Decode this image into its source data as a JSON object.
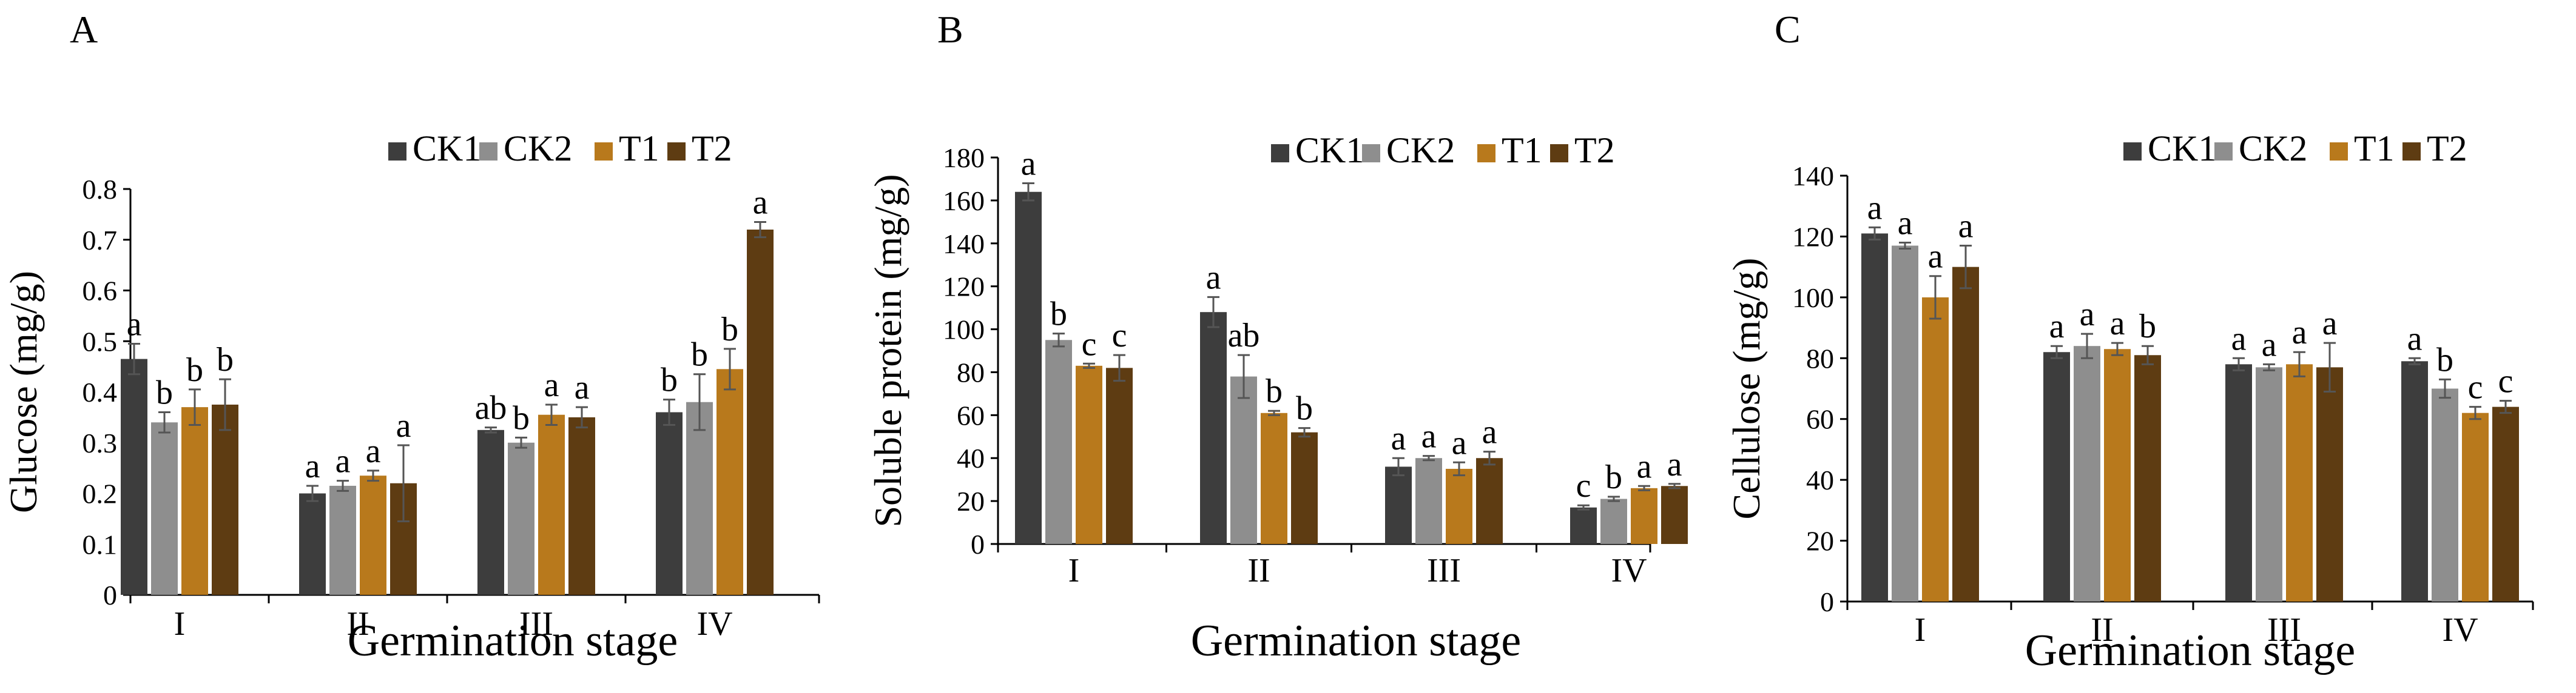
{
  "figure": {
    "legend": [
      "CK1",
      "CK2",
      "T1",
      "T2"
    ],
    "series_colors": [
      "#3d3d3d",
      "#8e8e8e",
      "#b8791c",
      "#5e3c12"
    ]
  },
  "chart_data": [
    {
      "panel": "A",
      "type": "bar",
      "ylabel": "Glucose (mg/g)",
      "xlabel": "Germination stage",
      "categories": [
        "I",
        "II",
        "III",
        "IV"
      ],
      "ylim": [
        0,
        0.8
      ],
      "yticks": [
        "0",
        "0.1",
        "0.2",
        "0.3",
        "0.4",
        "0.5",
        "0.6",
        "0.7",
        "0.8"
      ],
      "series": [
        {
          "name": "CK1",
          "values": [
            0.465,
            0.2,
            0.325,
            0.36
          ],
          "errors": [
            0.03,
            0.015,
            0.005,
            0.025
          ],
          "labels": [
            "a",
            "a",
            "ab",
            "b"
          ]
        },
        {
          "name": "CK2",
          "values": [
            0.34,
            0.215,
            0.3,
            0.38
          ],
          "errors": [
            0.02,
            0.01,
            0.01,
            0.055
          ],
          "labels": [
            "b",
            "a",
            "b",
            "b"
          ]
        },
        {
          "name": "T1",
          "values": [
            0.37,
            0.235,
            0.355,
            0.445
          ],
          "errors": [
            0.035,
            0.01,
            0.02,
            0.04
          ],
          "labels": [
            "b",
            "a",
            "a",
            "b"
          ]
        },
        {
          "name": "T2",
          "values": [
            0.375,
            0.22,
            0.35,
            0.72
          ],
          "errors": [
            0.05,
            0.075,
            0.02,
            0.015
          ],
          "labels": [
            "b",
            "a",
            "a",
            "a"
          ]
        }
      ]
    },
    {
      "panel": "B",
      "type": "bar",
      "ylabel": "Soluble protein (mg/g)",
      "xlabel": "Germination stage",
      "categories": [
        "I",
        "II",
        "III",
        "IV"
      ],
      "ylim": [
        0,
        180
      ],
      "yticks": [
        "0",
        "20",
        "40",
        "60",
        "80",
        "100",
        "120",
        "140",
        "160",
        "180"
      ],
      "series": [
        {
          "name": "CK1",
          "values": [
            164,
            108,
            36,
            17
          ],
          "errors": [
            4,
            7,
            4,
            1
          ],
          "labels": [
            "a",
            "a",
            "a",
            "c"
          ]
        },
        {
          "name": "CK2",
          "values": [
            95,
            78,
            40,
            21
          ],
          "errors": [
            3,
            10,
            1,
            1
          ],
          "labels": [
            "b",
            "ab",
            "a",
            "b"
          ]
        },
        {
          "name": "T1",
          "values": [
            83,
            61,
            35,
            26
          ],
          "errors": [
            1,
            1,
            3,
            1
          ],
          "labels": [
            "c",
            "b",
            "a",
            "a"
          ]
        },
        {
          "name": "T2",
          "values": [
            82,
            52,
            40,
            27
          ],
          "errors": [
            6,
            2,
            3,
            1
          ],
          "labels": [
            "c",
            "b",
            "a",
            "a"
          ]
        }
      ]
    },
    {
      "panel": "C",
      "type": "bar",
      "ylabel": "Cellulose (mg/g)",
      "xlabel": "Germination stage",
      "categories": [
        "I",
        "II",
        "III",
        "IV"
      ],
      "ylim": [
        0,
        140
      ],
      "yticks": [
        "0",
        "20",
        "40",
        "60",
        "80",
        "100",
        "120",
        "140"
      ],
      "series": [
        {
          "name": "CK1",
          "values": [
            121,
            82,
            78,
            79
          ],
          "errors": [
            2,
            2,
            2,
            1
          ],
          "labels": [
            "a",
            "a",
            "a",
            "a"
          ]
        },
        {
          "name": "CK2",
          "values": [
            117,
            84,
            77,
            70
          ],
          "errors": [
            1,
            4,
            1,
            3
          ],
          "labels": [
            "a",
            "a",
            "a",
            "b"
          ]
        },
        {
          "name": "T1",
          "values": [
            100,
            83,
            78,
            62
          ],
          "errors": [
            7,
            2,
            4,
            2
          ],
          "labels": [
            "a",
            "a",
            "a",
            "c"
          ]
        },
        {
          "name": "T2",
          "values": [
            110,
            81,
            77,
            64
          ],
          "errors": [
            7,
            3,
            8,
            2
          ],
          "labels": [
            "a",
            "b",
            "a",
            "c"
          ]
        }
      ]
    }
  ]
}
